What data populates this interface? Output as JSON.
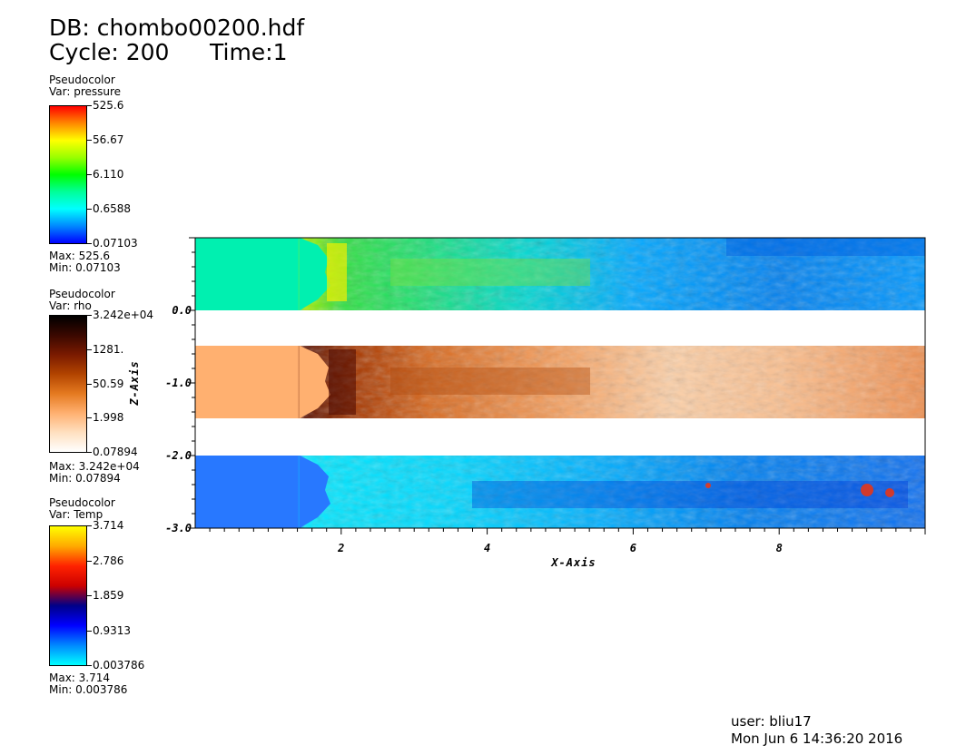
{
  "header": {
    "db_label": "DB: chombo00200.hdf",
    "cycle_label": "Cycle: 200",
    "time_label": "Time:1"
  },
  "legends": [
    {
      "plot_type": "Pseudocolor",
      "var_label": "Var: pressure",
      "gradient": [
        "#ff0000",
        "#ff8800",
        "#ffff00",
        "#99ff00",
        "#00ff00",
        "#00ff99",
        "#00ffff",
        "#0088ff",
        "#0000ff"
      ],
      "ticks": [
        "525.6",
        "56.67",
        "6.110",
        "0.6588",
        "0.07103"
      ],
      "max_label": "Max: 525.6",
      "min_label": "Min: 0.07103"
    },
    {
      "plot_type": "Pseudocolor",
      "var_label": "Var: rho",
      "gradient": [
        "#000000",
        "#3a0800",
        "#7a1a00",
        "#b24400",
        "#e57a20",
        "#ffb070",
        "#ffe0c0",
        "#ffffff"
      ],
      "ticks": [
        "3.242e+04",
        "1281.",
        "50.59",
        "1.998",
        "0.07894"
      ],
      "max_label": "Max: 3.242e+04",
      "min_label": "Min: 0.07894"
    },
    {
      "plot_type": "Pseudocolor",
      "var_label": "Var: Temp",
      "gradient": [
        "#ffff00",
        "#ffaa00",
        "#ff2200",
        "#cc0000",
        "#000088",
        "#0000ff",
        "#0088ff",
        "#00ffff"
      ],
      "ticks": [
        "3.714",
        "2.786",
        "1.859",
        "0.9313",
        "0.003786"
      ],
      "max_label": "Max: 3.714",
      "min_label": "Min: 0.003786"
    }
  ],
  "chart_data": {
    "type": "heatmap",
    "xlabel": "X-Axis",
    "ylabel": "Z-Axis",
    "xlim": [
      0,
      10
    ],
    "ylim": [
      -3,
      1
    ],
    "x_ticks": [
      2,
      4,
      6,
      8
    ],
    "x_tick_labels": [
      "2",
      "4",
      "6",
      "8"
    ],
    "y_ticks": [
      0,
      -1,
      -2,
      -3
    ],
    "y_tick_labels": [
      "0.0",
      "-1.0",
      "-2.0",
      "-3.0"
    ],
    "series": [
      {
        "name": "pressure",
        "z_range": [
          0,
          1
        ]
      },
      {
        "name": "rho",
        "z_range": [
          -1.5,
          -0.5
        ]
      },
      {
        "name": "Temp",
        "z_range": [
          -3,
          -2
        ]
      }
    ]
  },
  "footer": {
    "user_label": "user: bliu17",
    "date_label": "Mon Jun  6 14:36:20 2016"
  }
}
